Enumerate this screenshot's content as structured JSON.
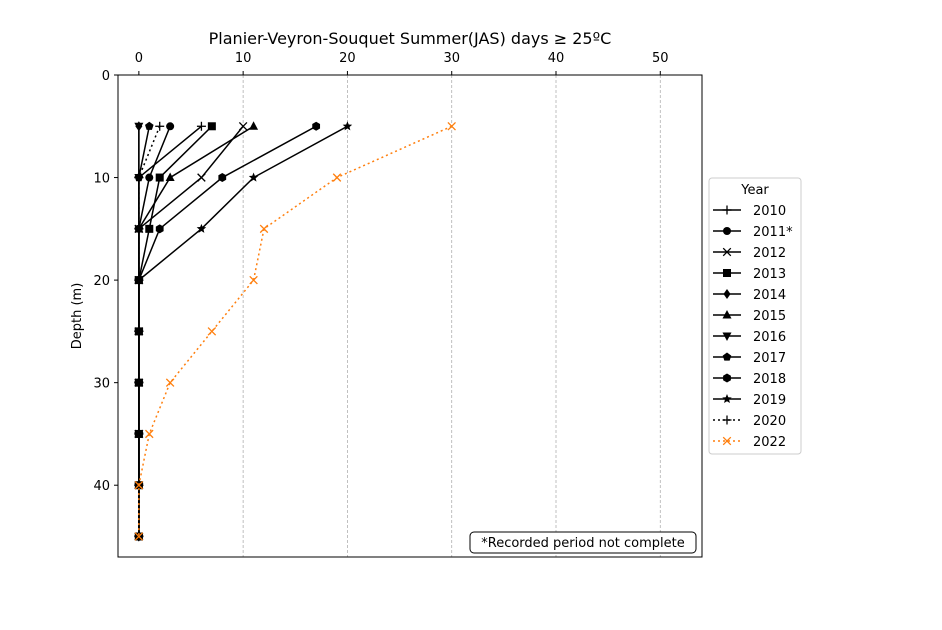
{
  "chart_data": {
    "type": "line",
    "title": "Planier-Veyron-Souquet Summer(JAS) days ≥ 25ºC",
    "xlabel": "",
    "ylabel": "Depth (m)",
    "x_axis_position": "top",
    "y_inverted": true,
    "xlim": [
      -2,
      54
    ],
    "ylim": [
      0,
      47
    ],
    "x_ticks": [
      0,
      10,
      20,
      30,
      40,
      50
    ],
    "y_ticks": [
      0,
      10,
      20,
      30,
      40
    ],
    "grid": "vertical dashed gridlines on x ticks",
    "legend": {
      "title": "Year",
      "placement": "outside right"
    },
    "annotation": "*Recorded period not complete",
    "depths": [
      5,
      10,
      15,
      20,
      25,
      30,
      35,
      40,
      45
    ],
    "series": [
      {
        "name": "2010",
        "marker": "plus",
        "color": "#000000",
        "linestyle": "solid",
        "days": [
          6,
          0,
          0,
          0,
          0,
          0,
          0,
          0,
          0
        ]
      },
      {
        "name": "2011*",
        "marker": "circle",
        "color": "#000000",
        "linestyle": "solid",
        "days": [
          3,
          1,
          0,
          0,
          0,
          0,
          0,
          0,
          0
        ]
      },
      {
        "name": "2012",
        "marker": "x",
        "color": "#000000",
        "linestyle": "solid",
        "days": [
          10,
          6,
          0,
          0,
          0,
          0,
          0,
          0,
          0
        ]
      },
      {
        "name": "2013",
        "marker": "square",
        "color": "#000000",
        "linestyle": "solid",
        "days": [
          7,
          2,
          1,
          0,
          0,
          0,
          0,
          0,
          0
        ]
      },
      {
        "name": "2014",
        "marker": "diamond",
        "color": "#000000",
        "linestyle": "solid",
        "days": [
          0,
          0,
          0,
          0,
          0,
          0,
          0,
          0,
          0
        ]
      },
      {
        "name": "2015",
        "marker": "triangle",
        "color": "#000000",
        "linestyle": "solid",
        "days": [
          11,
          3,
          0,
          0,
          0,
          0,
          0,
          0,
          0
        ]
      },
      {
        "name": "2016",
        "marker": "triangle-down",
        "color": "#000000",
        "linestyle": "solid",
        "days": [
          0,
          0,
          0,
          0,
          0,
          0,
          0,
          0,
          0
        ]
      },
      {
        "name": "2017",
        "marker": "pentagon",
        "color": "#000000",
        "linestyle": "solid",
        "days": [
          1,
          0,
          0,
          0,
          0,
          0,
          0,
          0,
          0
        ]
      },
      {
        "name": "2018",
        "marker": "hexagon",
        "color": "#000000",
        "linestyle": "solid",
        "days": [
          17,
          8,
          2,
          0,
          0,
          0,
          0,
          0,
          0
        ]
      },
      {
        "name": "2019",
        "marker": "star",
        "color": "#000000",
        "linestyle": "solid",
        "days": [
          20,
          11,
          6,
          0,
          0,
          0,
          0,
          0,
          0
        ]
      },
      {
        "name": "2020",
        "marker": "plus",
        "color": "#000000",
        "linestyle": "dotted",
        "days": [
          2,
          0,
          0,
          0,
          0,
          0,
          0,
          0,
          0
        ]
      },
      {
        "name": "2022",
        "marker": "x",
        "color": "#ff7f0e",
        "linestyle": "dotted",
        "days": [
          30,
          19,
          12,
          11,
          7,
          3,
          1,
          0,
          0
        ]
      }
    ]
  }
}
